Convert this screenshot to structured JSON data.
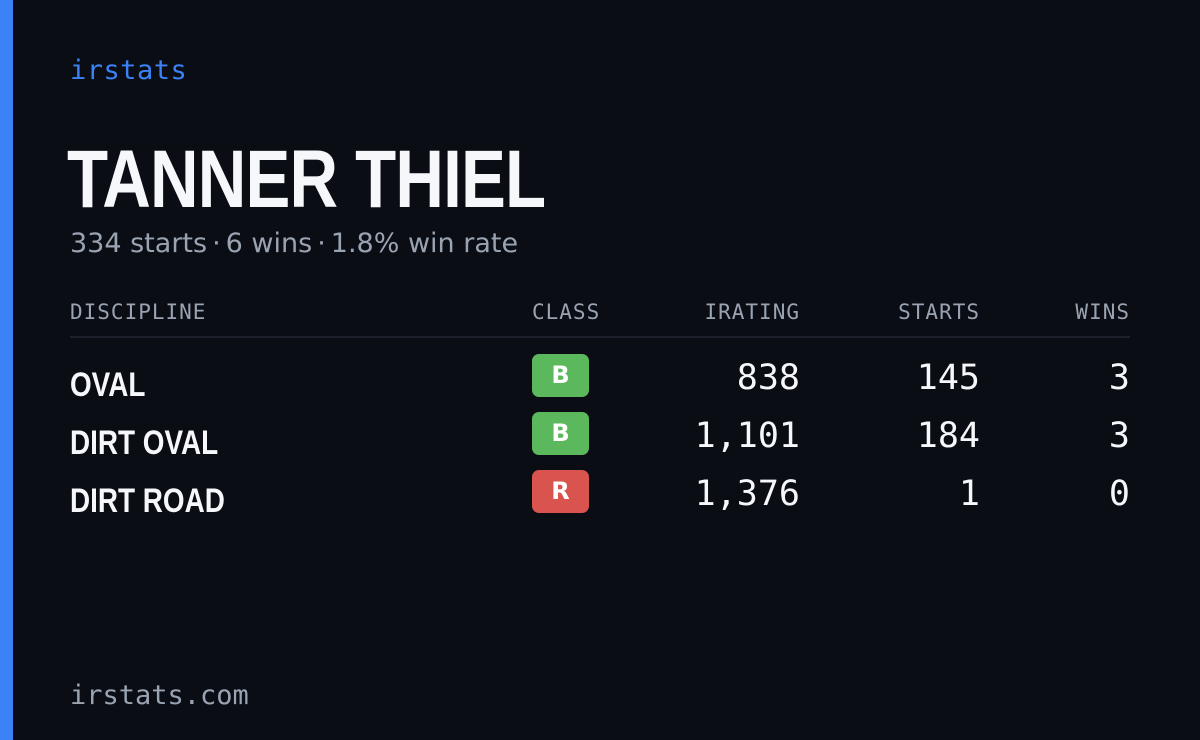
{
  "brand": "irstats",
  "driver": {
    "name": "TANNER THIEL",
    "summary": {
      "starts": "334 starts",
      "wins": "6 wins",
      "win_rate": "1.8% win rate",
      "separator": "·"
    }
  },
  "table": {
    "headers": {
      "discipline": "DISCIPLINE",
      "class": "CLASS",
      "irating": "IRATING",
      "starts": "STARTS",
      "wins": "WINS"
    },
    "rows": [
      {
        "discipline": "OVAL",
        "class": "B",
        "class_color": "#5cb85c",
        "irating": "838",
        "starts": "145",
        "wins": "3"
      },
      {
        "discipline": "DIRT OVAL",
        "class": "B",
        "class_color": "#5cb85c",
        "irating": "1,101",
        "starts": "184",
        "wins": "3"
      },
      {
        "discipline": "DIRT ROAD",
        "class": "R",
        "class_color": "#d9534f",
        "irating": "1,376",
        "starts": "1",
        "wins": "0"
      }
    ]
  },
  "footer": "irstats.com",
  "colors": {
    "background": "#0a0d14",
    "accent": "#3b82f6",
    "muted_text": "#9aa3b2"
  }
}
